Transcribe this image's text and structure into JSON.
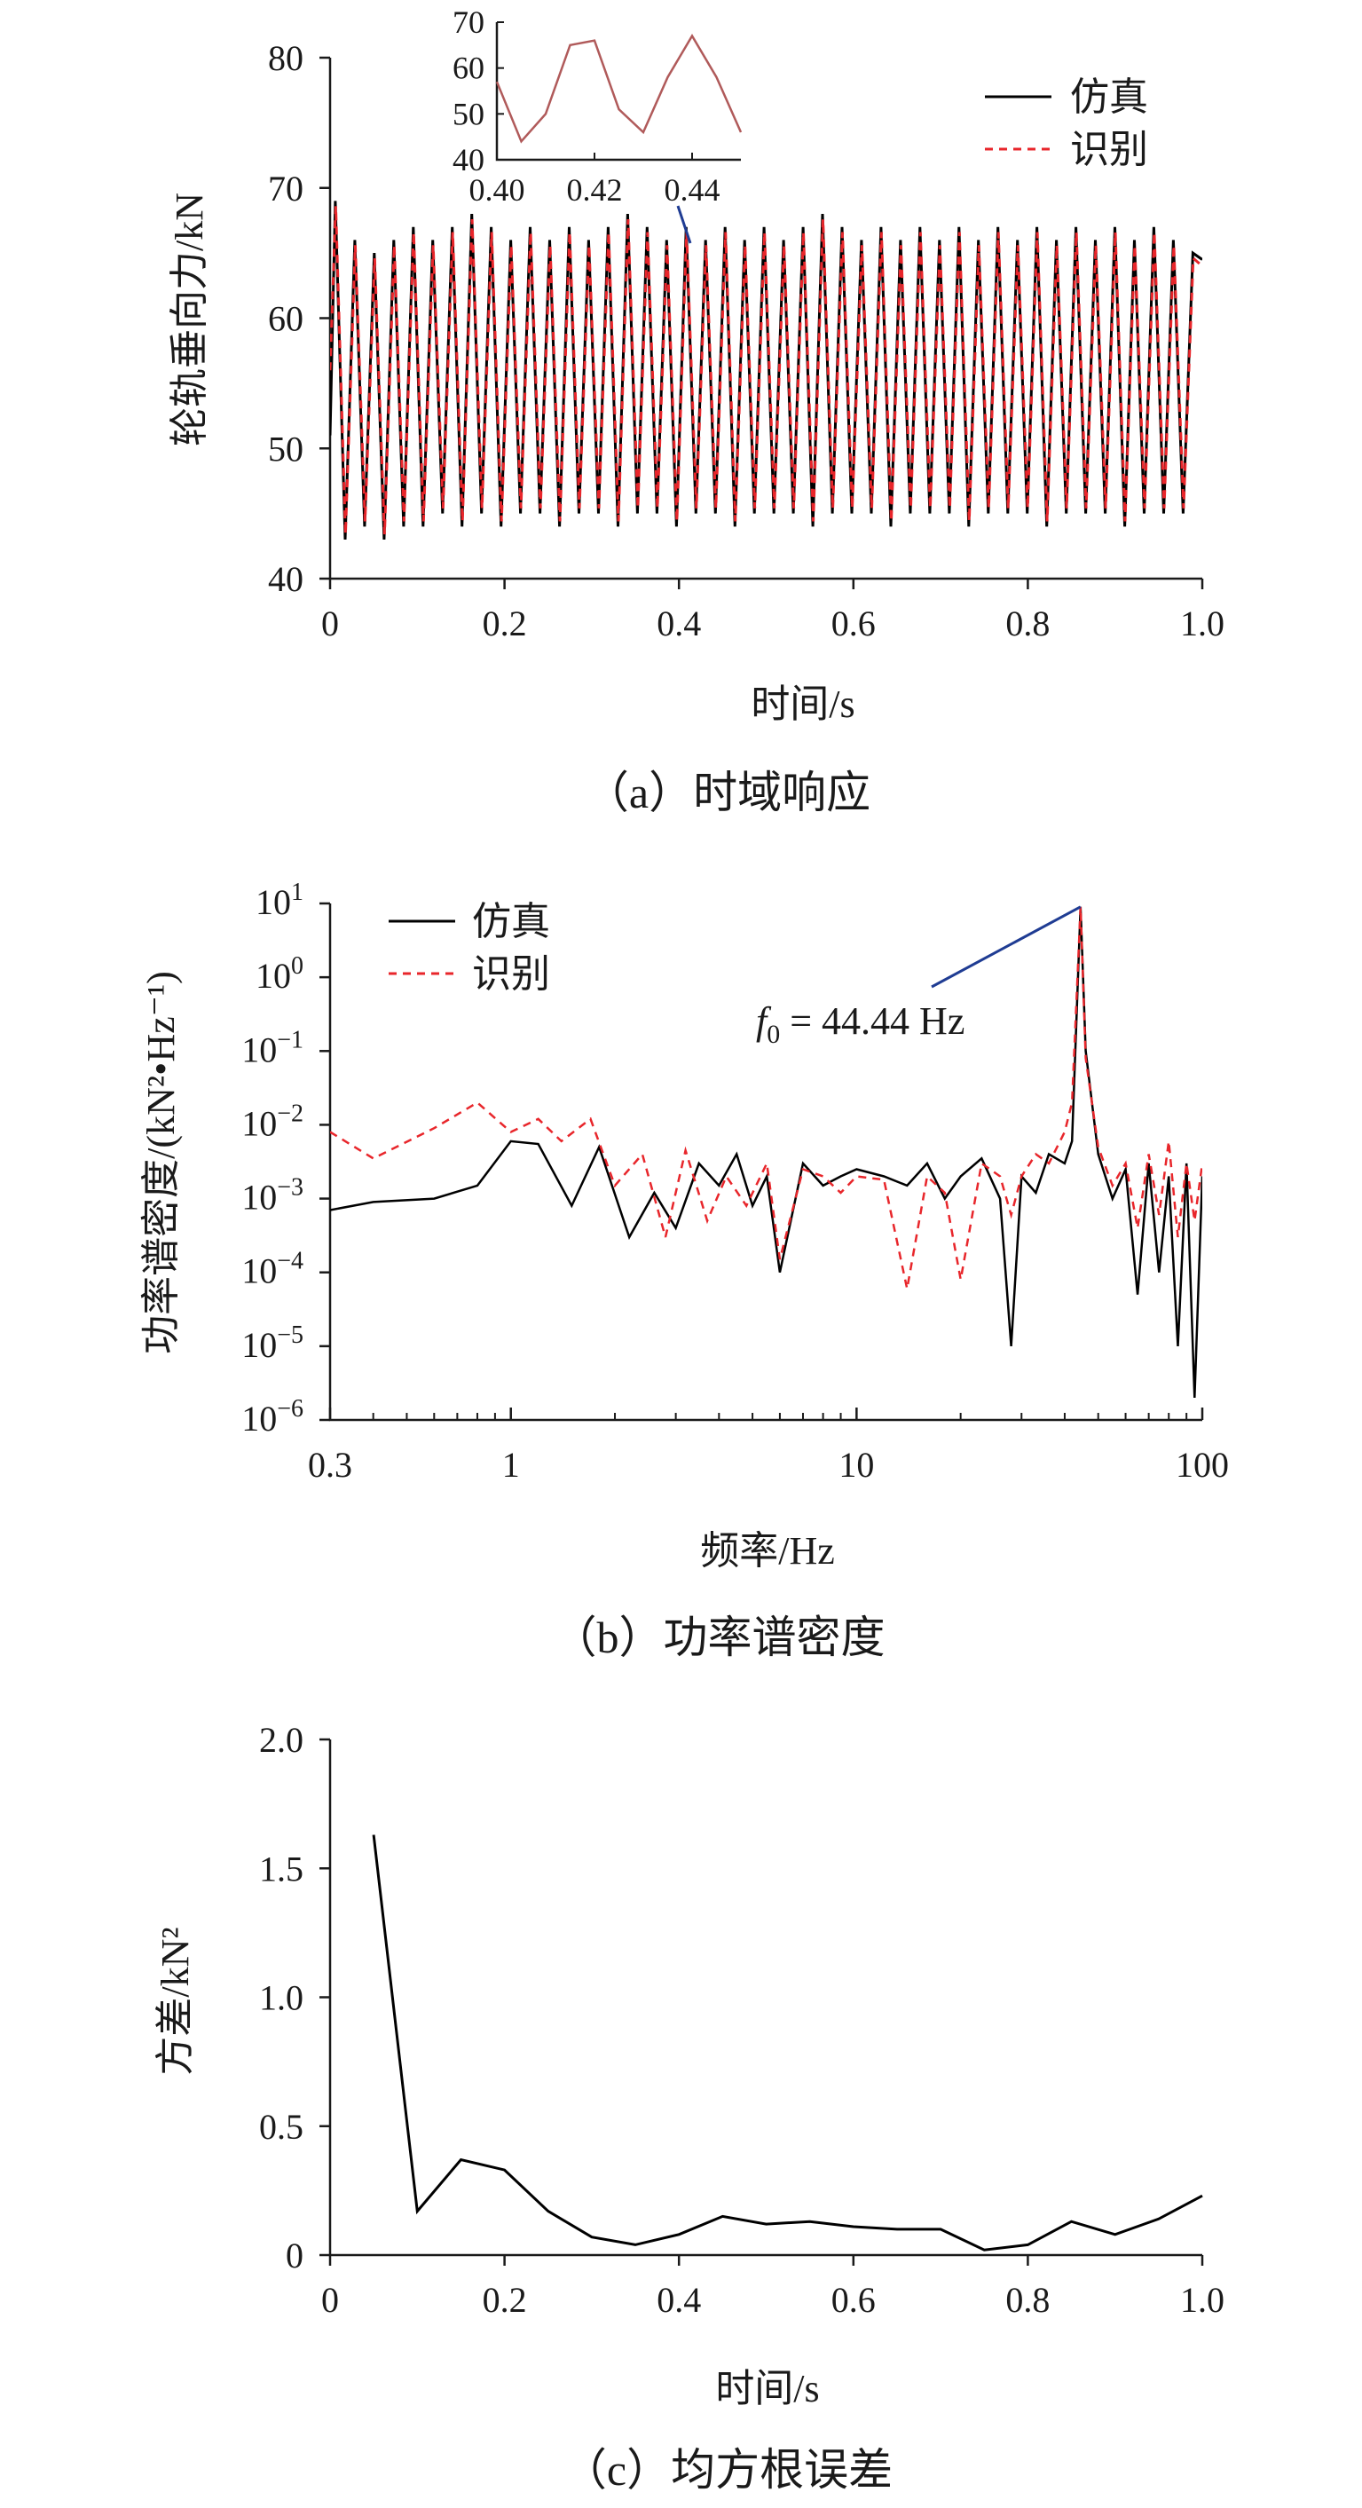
{
  "chart_data": [
    {
      "type": "line",
      "caption": "（a）时域响应",
      "xlabel": "时间/s",
      "ylabel": "轮轨垂向力/kN",
      "xlim": [
        0,
        1.0
      ],
      "ylim": [
        40,
        80
      ],
      "xticks": [
        "0",
        "0.2",
        "0.4",
        "0.6",
        "0.8",
        "1.0"
      ],
      "yticks": [
        "40",
        "50",
        "60",
        "70",
        "80"
      ],
      "excitation_frequency_hz": 44.44,
      "series": [
        {
          "name": "仿真",
          "color": "#000000",
          "dash": "solid",
          "peak_values": [
            69,
            66,
            65,
            66,
            67,
            66,
            67,
            68,
            67,
            66,
            67,
            66,
            67,
            66,
            67,
            68,
            67,
            66,
            67,
            66,
            67,
            66,
            67,
            66,
            67,
            68,
            67,
            66,
            67,
            66,
            67,
            66,
            67,
            66,
            67,
            66,
            67,
            66,
            67,
            66,
            67,
            66,
            67,
            66,
            65
          ],
          "trough_values": [
            43,
            44,
            43,
            44,
            44,
            45,
            44,
            45,
            44,
            45,
            45,
            44,
            45,
            45,
            44,
            45,
            45,
            44,
            45,
            45,
            44,
            45,
            45,
            45,
            44,
            45,
            45,
            45,
            44,
            45,
            45,
            45,
            44,
            45,
            45,
            45,
            44,
            45,
            45,
            45,
            44,
            45,
            45,
            45,
            45
          ]
        },
        {
          "name": "识别",
          "color": "#e8262b",
          "dash": "dashed"
        }
      ],
      "inset": {
        "xlim": [
          0.4,
          0.45
        ],
        "ylim": [
          40,
          70
        ],
        "xticks": [
          "0.40",
          "0.42",
          "0.44"
        ],
        "yticks": [
          "40",
          "50",
          "60",
          "70"
        ],
        "points": [
          [
            0.4,
            57
          ],
          [
            0.405,
            44
          ],
          [
            0.41,
            50
          ],
          [
            0.415,
            65
          ],
          [
            0.42,
            66
          ],
          [
            0.425,
            51
          ],
          [
            0.43,
            46
          ],
          [
            0.435,
            58
          ],
          [
            0.44,
            67
          ],
          [
            0.445,
            58
          ],
          [
            0.45,
            46
          ]
        ]
      }
    },
    {
      "type": "line",
      "scale": "log-log",
      "caption": "（b）功率谱密度",
      "xlabel": "频率/Hz",
      "ylabel": "功率谱密度/(kN²•Hz⁻¹)",
      "xlim": [
        0.3,
        100
      ],
      "ylim_exponent": [
        -6,
        1
      ],
      "xticks": [
        "0.3",
        "1",
        "10",
        "100"
      ],
      "ytick_base": "10",
      "ytick_exponents": [
        "1",
        "0",
        "−1",
        "−2",
        "−3",
        "−4",
        "−5",
        "−6"
      ],
      "annotation": {
        "symbol": "f",
        "subscript": "0",
        "text": " = 44.44 Hz",
        "x": 44.44,
        "y": 9
      },
      "series": [
        {
          "name": "仿真",
          "color": "#000000",
          "dash": "solid",
          "x": [
            0.3,
            0.4,
            0.6,
            0.8,
            1.0,
            1.2,
            1.5,
            1.8,
            2.2,
            2.6,
            3.0,
            3.5,
            4.0,
            4.5,
            5.0,
            5.5,
            6.0,
            7.0,
            8.0,
            9.0,
            10,
            12,
            14,
            16,
            18,
            20,
            23,
            26,
            28,
            30,
            33,
            36,
            40,
            42,
            44.44,
            46,
            50,
            55,
            60,
            65,
            70,
            75,
            80,
            85,
            90,
            95,
            100
          ],
          "y": [
            0.0007,
            0.0009,
            0.001,
            0.0015,
            0.006,
            0.0055,
            0.0008,
            0.005,
            0.0003,
            0.0012,
            0.0004,
            0.003,
            0.0015,
            0.004,
            0.0008,
            0.002,
            0.0001,
            0.003,
            0.0015,
            0.002,
            0.0025,
            0.002,
            0.0015,
            0.003,
            0.001,
            0.002,
            0.0035,
            0.001,
            1e-05,
            0.002,
            0.0012,
            0.004,
            0.003,
            0.006,
            9,
            0.1,
            0.004,
            0.001,
            0.0025,
            5e-05,
            0.003,
            0.0001,
            0.002,
            1e-05,
            0.003,
            2e-06,
            0.002
          ]
        },
        {
          "name": "识别",
          "color": "#e8262b",
          "dash": "dashed",
          "x": [
            0.3,
            0.4,
            0.6,
            0.8,
            1.0,
            1.2,
            1.4,
            1.7,
            2.0,
            2.4,
            2.8,
            3.2,
            3.7,
            4.2,
            4.8,
            5.5,
            6.0,
            7.0,
            8.0,
            9.0,
            10,
            12,
            14,
            16,
            18,
            20,
            23,
            26,
            28,
            30,
            33,
            36,
            40,
            42,
            44.44,
            46,
            50,
            55,
            60,
            65,
            70,
            75,
            80,
            85,
            90,
            95,
            100
          ],
          "y": [
            0.008,
            0.0035,
            0.009,
            0.02,
            0.008,
            0.012,
            0.006,
            0.012,
            0.0015,
            0.004,
            0.0003,
            0.0045,
            0.0005,
            0.002,
            0.0008,
            0.003,
            0.00015,
            0.0025,
            0.002,
            0.0012,
            0.002,
            0.0018,
            6e-05,
            0.002,
            0.0012,
            8e-05,
            0.003,
            0.002,
            0.0006,
            0.002,
            0.004,
            0.003,
            0.008,
            0.02,
            9,
            0.08,
            0.005,
            0.0015,
            0.003,
            0.0004,
            0.004,
            0.0006,
            0.006,
            0.0003,
            0.003,
            0.0005,
            0.003
          ]
        }
      ]
    },
    {
      "type": "line",
      "caption": "（c）均方根误差",
      "xlabel": "时间/s",
      "ylabel": "方差/kN²",
      "xlim": [
        0,
        1.0
      ],
      "ylim": [
        0,
        2.0
      ],
      "xticks": [
        "0",
        "0.2",
        "0.4",
        "0.6",
        "0.8",
        "1.0"
      ],
      "yticks": [
        "0",
        "0.5",
        "1.0",
        "1.5",
        "2.0"
      ],
      "series": [
        {
          "name": "",
          "color": "#000000",
          "dash": "solid",
          "x": [
            0.05,
            0.1,
            0.15,
            0.2,
            0.25,
            0.3,
            0.35,
            0.4,
            0.45,
            0.5,
            0.55,
            0.6,
            0.65,
            0.7,
            0.75,
            0.8,
            0.85,
            0.9,
            0.95,
            1.0
          ],
          "y": [
            1.63,
            0.17,
            0.37,
            0.33,
            0.17,
            0.07,
            0.04,
            0.08,
            0.15,
            0.12,
            0.13,
            0.11,
            0.1,
            0.1,
            0.02,
            0.04,
            0.13,
            0.08,
            0.14,
            0.23
          ]
        }
      ]
    }
  ]
}
